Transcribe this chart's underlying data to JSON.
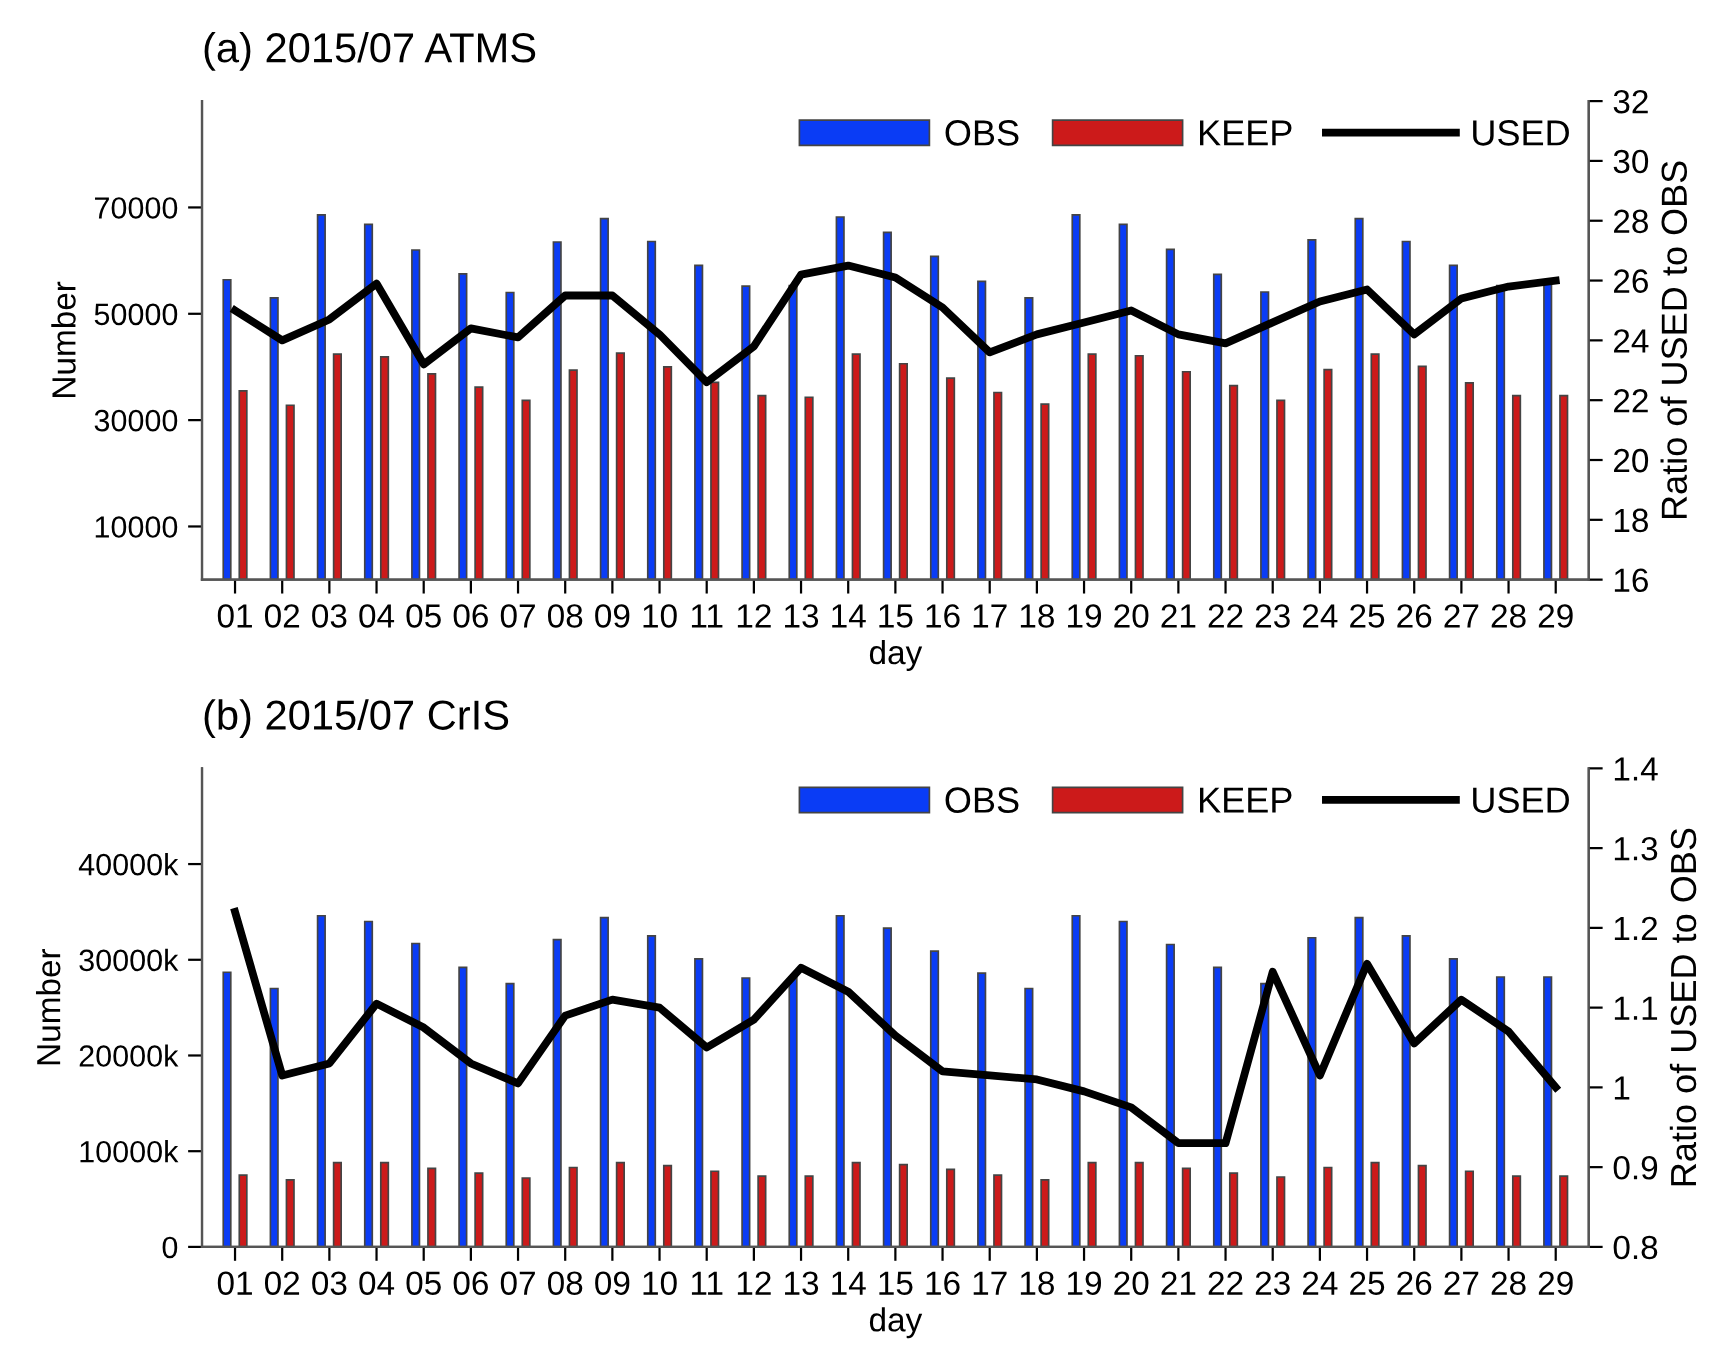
{
  "chart_data": [
    {
      "type": "bar",
      "title": "(a) 2015/07 ATMS",
      "xlabel": "day",
      "ylabel": "Number",
      "y2label": "Ratio of USED to OBS",
      "categories": [
        "01",
        "02",
        "03",
        "04",
        "05",
        "06",
        "07",
        "08",
        "09",
        "10",
        "11",
        "12",
        "13",
        "14",
        "15",
        "16",
        "17",
        "18",
        "19",
        "20",
        "21",
        "22",
        "23",
        "24",
        "25",
        "26",
        "27",
        "28",
        "29"
      ],
      "series": [
        {
          "name": "OBS",
          "color": "#0a3cf5",
          "values": [
            56400,
            53000,
            68600,
            66800,
            62000,
            57500,
            54000,
            63500,
            67900,
            63600,
            59100,
            55200,
            55300,
            68200,
            65300,
            60800,
            56100,
            53000,
            68600,
            66800,
            62100,
            57400,
            54100,
            63900,
            67900,
            63600,
            59100,
            55300,
            56000
          ]
        },
        {
          "name": "KEEP",
          "color": "#cc1a1a",
          "values": [
            35500,
            32800,
            42400,
            41900,
            38700,
            36200,
            33700,
            39400,
            42600,
            40000,
            37100,
            34600,
            34300,
            42400,
            40600,
            37900,
            35200,
            33000,
            42400,
            42100,
            39100,
            36500,
            33700,
            39500,
            42400,
            40100,
            37000,
            34600,
            34600
          ]
        },
        {
          "name": "USED",
          "type": "line",
          "axis": "y2",
          "color": "#000000",
          "values": [
            25.0,
            24.0,
            24.7,
            25.9,
            23.2,
            24.4,
            24.1,
            25.5,
            25.5,
            24.2,
            22.6,
            23.8,
            26.2,
            26.5,
            26.1,
            25.1,
            23.6,
            24.2,
            24.6,
            25.0,
            24.2,
            23.9,
            24.6,
            25.3,
            25.7,
            24.2,
            25.4,
            25.8,
            26.0
          ]
        }
      ],
      "ylim": [
        0,
        90000
      ],
      "yticks": [
        10000,
        30000,
        50000,
        70000
      ],
      "y2lim": [
        16,
        32
      ],
      "y2ticks": [
        16,
        18,
        20,
        22,
        24,
        26,
        28,
        30,
        32
      ],
      "legend": "top right",
      "grid": false
    },
    {
      "type": "bar",
      "title": "(b) 2015/07 CrIS",
      "xlabel": "day",
      "ylabel": "Number",
      "y2label": "Ratio of USED to OBS",
      "categories": [
        "01",
        "02",
        "03",
        "04",
        "05",
        "06",
        "07",
        "08",
        "09",
        "10",
        "11",
        "12",
        "13",
        "14",
        "15",
        "16",
        "17",
        "18",
        "19",
        "20",
        "21",
        "22",
        "23",
        "24",
        "25",
        "26",
        "27",
        "28",
        "29"
      ],
      "series": [
        {
          "name": "OBS",
          "color": "#0a3cf5",
          "values": [
            28700,
            27000,
            34600,
            34000,
            31700,
            29200,
            27500,
            32100,
            34400,
            32500,
            30100,
            28100,
            28200,
            34600,
            33300,
            30900,
            28600,
            27000,
            34600,
            34000,
            31600,
            29200,
            27500,
            32300,
            34400,
            32500,
            30100,
            28200,
            28200
          ]
        },
        {
          "name": "KEEP",
          "color": "#cc1a1a",
          "values": [
            7500,
            7000,
            8800,
            8800,
            8200,
            7700,
            7200,
            8300,
            8800,
            8500,
            7900,
            7400,
            7400,
            8800,
            8600,
            8100,
            7500,
            7000,
            8800,
            8800,
            8200,
            7700,
            7300,
            8300,
            8800,
            8500,
            7900,
            7400,
            7400
          ]
        },
        {
          "name": "USED",
          "type": "line",
          "axis": "y2",
          "color": "#000000",
          "values": [
            1.22,
            1.015,
            1.03,
            1.105,
            1.075,
            1.03,
            1.005,
            1.09,
            1.11,
            1.1,
            1.05,
            1.085,
            1.15,
            1.12,
            1.065,
            1.02,
            1.015,
            1.01,
            0.995,
            0.975,
            0.93,
            0.93,
            1.145,
            1.015,
            1.155,
            1.055,
            1.11,
            1.07,
            1.0
          ]
        }
      ],
      "ylim": [
        0,
        50000
      ],
      "yticks": [
        0,
        {
          "value": 10000,
          "label": "10000k"
        },
        {
          "value": 20000,
          "label": "20000k"
        },
        {
          "value": 30000,
          "label": "30000k"
        },
        {
          "value": 40000,
          "label": "40000k"
        }
      ],
      "y2lim": [
        0.8,
        1.4
      ],
      "y2ticks": [
        0.8,
        0.9,
        1,
        1.1,
        1.2,
        1.3,
        1.4
      ],
      "legend": "top right",
      "grid": false
    }
  ]
}
